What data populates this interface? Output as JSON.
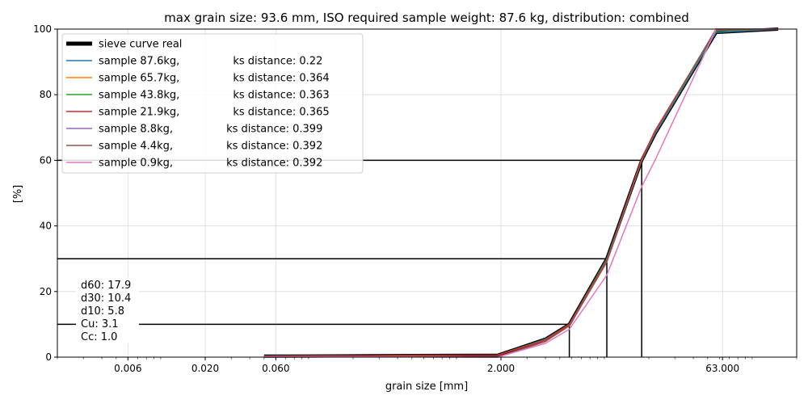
{
  "chart_data": {
    "type": "line",
    "title": "max grain size: 93.6 mm, ISO required sample weight: 87.6 kg, distribution: combined",
    "xlabel": "grain size [mm]",
    "ylabel": "[%]",
    "xscale": "log",
    "xlim": [
      0.002,
      200
    ],
    "ylim": [
      0,
      100
    ],
    "x_ticks": [
      0.006,
      0.02,
      0.06,
      2.0,
      63.0
    ],
    "x_tick_labels": [
      "0.006",
      "0.020",
      "0.060",
      "2.000",
      "63.000"
    ],
    "y_ticks": [
      0,
      20,
      40,
      60,
      80,
      100
    ],
    "y_tick_labels": [
      "0",
      "20",
      "40",
      "60",
      "80",
      "100"
    ],
    "grid": true,
    "legend_position": "top-left",
    "legend_labels": [
      "sieve curve real",
      "sample 87.6kg,                ks distance: 0.22",
      "sample 65.7kg,                ks distance: 0.364",
      "sample 43.8kg,                ks distance: 0.363",
      "sample 21.9kg,                ks distance: 0.365",
      "sample 8.8kg,                ks distance: 0.399",
      "sample 4.4kg,                ks distance: 0.392",
      "sample 0.9kg,                ks distance: 0.392"
    ],
    "series": [
      {
        "name": "sieve curve real",
        "color": "#000000",
        "x": [
          0.05,
          1.9,
          4.0,
          5.8,
          10.4,
          17.9,
          22,
          57,
          150
        ],
        "y": [
          0.3,
          0.6,
          5.5,
          10,
          30,
          60,
          68,
          99,
          100
        ]
      },
      {
        "name": "sample 87.6kg",
        "color": "#1f77b4",
        "x": [
          0.05,
          1.9,
          4.0,
          5.8,
          10.4,
          17.9,
          22,
          57,
          150
        ],
        "y": [
          0.3,
          0.6,
          5.5,
          10,
          30,
          60,
          68,
          99,
          100
        ]
      },
      {
        "name": "sample 65.7kg",
        "color": "#ff7f0e",
        "x": [
          0.05,
          1.9,
          4.0,
          5.8,
          10.4,
          17.9,
          22,
          57,
          150
        ],
        "y": [
          0.3,
          0.6,
          5.3,
          10,
          29.5,
          60,
          68.5,
          99.5,
          100
        ]
      },
      {
        "name": "sample 43.8kg",
        "color": "#2ca02c",
        "x": [
          0.05,
          1.9,
          4.0,
          5.8,
          10.4,
          17.9,
          22,
          57,
          150
        ],
        "y": [
          0.3,
          0.6,
          5.3,
          10,
          29.8,
          60,
          68.5,
          99.5,
          100
        ]
      },
      {
        "name": "sample 21.9kg",
        "color": "#d62728",
        "x": [
          0.05,
          1.9,
          4.0,
          5.8,
          10.4,
          17.9,
          22,
          57,
          150
        ],
        "y": [
          0.3,
          0.6,
          5.2,
          10,
          29.5,
          60.5,
          69,
          99.8,
          100
        ]
      },
      {
        "name": "sample 8.8kg",
        "color": "#9467bd",
        "x": [
          0.05,
          1.9,
          4.0,
          5.8,
          10.4,
          17.9,
          22,
          57,
          150
        ],
        "y": [
          0.2,
          0.0,
          4.8,
          9.5,
          29,
          60,
          68.5,
          100,
          100
        ]
      },
      {
        "name": "sample 4.4kg",
        "color": "#8c564b",
        "x": [
          0.05,
          1.9,
          4.0,
          5.8,
          10.4,
          17.9,
          22,
          57,
          150
        ],
        "y": [
          0.2,
          0.0,
          4.8,
          9.5,
          29,
          60,
          68.5,
          100,
          100
        ]
      },
      {
        "name": "sample 0.9kg",
        "color": "#e377c2",
        "x": [
          0.05,
          1.9,
          4.0,
          5.8,
          10.4,
          17.9,
          22,
          57,
          150
        ],
        "y": [
          0.2,
          0.0,
          4.2,
          8.5,
          25,
          52,
          60,
          100,
          100
        ]
      }
    ],
    "characteristic_lines": [
      {
        "x": 5.8,
        "y": 10
      },
      {
        "x": 10.4,
        "y": 30
      },
      {
        "x": 17.9,
        "y": 60
      }
    ],
    "annotation_lines": [
      "d60: 17.9",
      "d30: 10.4",
      "d10: 5.8",
      "Cu: 3.1",
      "Cc: 1.0"
    ]
  }
}
